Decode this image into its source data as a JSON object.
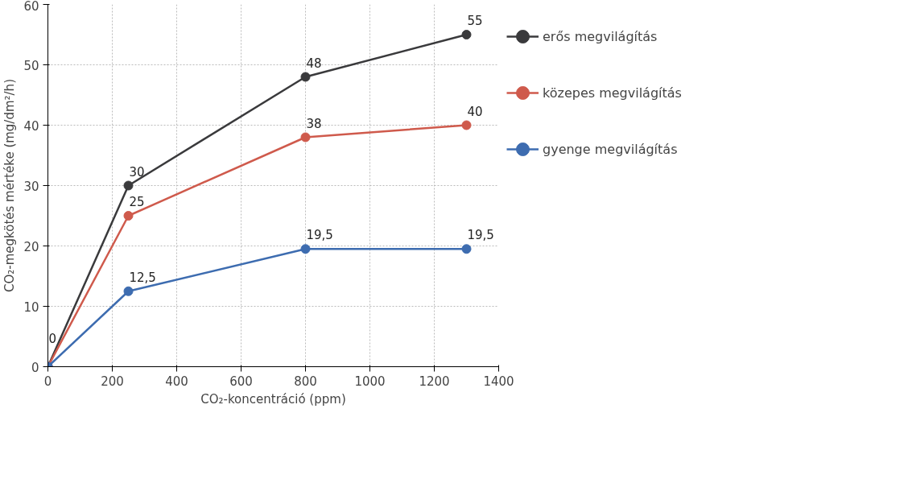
{
  "chart_data": {
    "type": "line",
    "xlabel": "CO₂-koncentráció (ppm)",
    "ylabel": "CO₂-megkötés mértéke (mg/dm²/h)",
    "x": [
      0,
      250,
      800,
      1300
    ],
    "series": [
      {
        "name": "erős megvilágítás",
        "color": "#3a3a3c",
        "values": [
          0,
          30,
          48,
          55
        ],
        "value_labels": [
          null,
          "30",
          "48",
          "55"
        ]
      },
      {
        "name": "közepes megvilágítás",
        "color": "#cf5a4c",
        "values": [
          0,
          25,
          38,
          40
        ],
        "value_labels": [
          null,
          "25",
          "38",
          "40"
        ]
      },
      {
        "name": "gyenge megvilágítás",
        "color": "#3d6cb0",
        "values": [
          0,
          12.5,
          19.5,
          19.5
        ],
        "value_labels": [
          "0",
          "12,5",
          "19,5",
          "19,5"
        ]
      }
    ],
    "xlim": [
      0,
      1400
    ],
    "xticks": [
      0,
      200,
      400,
      600,
      800,
      1000,
      1200,
      1400
    ],
    "ylim": [
      0,
      60
    ],
    "yticks": [
      0,
      10,
      20,
      30,
      40,
      50,
      60
    ],
    "grid": true,
    "legend": "right",
    "marker": "circle",
    "line_style": "solid"
  }
}
